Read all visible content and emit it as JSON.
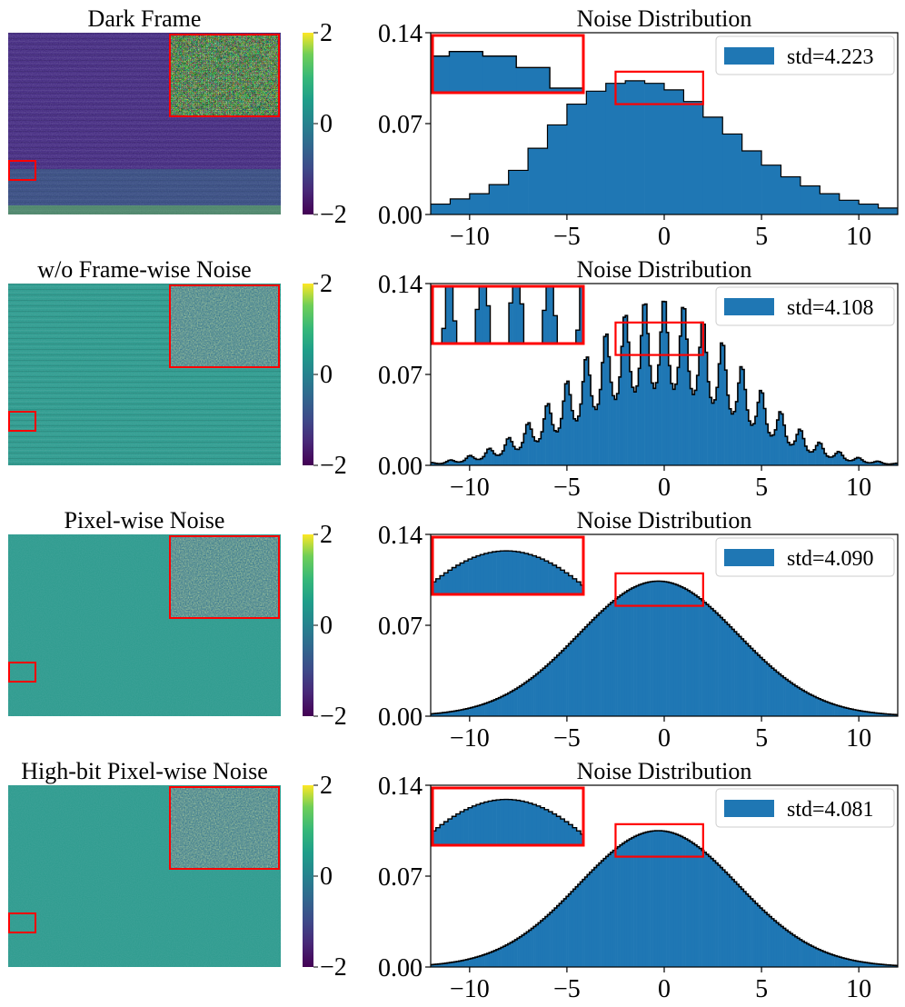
{
  "colors": {
    "bar": "#1f77b4",
    "bar_edge": "#000000",
    "box": "#ff0000",
    "noise_dark": "#3b1e78",
    "noise_teal": "#2a9a8c",
    "cmap_top": "#f2e51d",
    "cmap_mid": "#25838e",
    "cmap_bottom": "#440154"
  },
  "chart_data": [
    {
      "type": "heatmap",
      "panel": "dark-frame",
      "title": "Dark Frame",
      "colorbar_ticks": [
        "2",
        "0",
        "−2"
      ],
      "colorbar_range": [
        -2,
        2
      ],
      "pattern": "banded-dark"
    },
    {
      "type": "bar",
      "panel": "dark-frame-hist",
      "title": "Noise Distribution",
      "legend": "std=4.223",
      "xlim": [
        -12,
        12
      ],
      "ylim": [
        0,
        0.14
      ],
      "x_ticks": [
        "−10",
        "−5",
        "0",
        "5",
        "10"
      ],
      "x_tick_values": [
        -10,
        -5,
        0,
        5,
        10
      ],
      "y_ticks": [
        "0.00",
        "0.07",
        "0.14"
      ],
      "y_tick_values": [
        0,
        0.07,
        0.14
      ],
      "bin_edges": [
        -12,
        -11,
        -10,
        -9,
        -8,
        -7,
        -6,
        -5,
        -4,
        -3,
        -2,
        -1,
        0,
        1,
        2,
        3,
        4,
        5,
        6,
        7,
        8,
        9,
        10,
        11,
        12
      ],
      "values": [
        0.008,
        0.012,
        0.016,
        0.023,
        0.034,
        0.051,
        0.069,
        0.085,
        0.095,
        0.101,
        0.103,
        0.101,
        0.096,
        0.087,
        0.075,
        0.062,
        0.049,
        0.038,
        0.029,
        0.022,
        0.016,
        0.011,
        0.008,
        0.005
      ],
      "zoom_x": [
        -2.5,
        2
      ],
      "zoom_y": [
        0.085,
        0.11
      ]
    },
    {
      "type": "heatmap",
      "panel": "wo-frame-wise",
      "title": "w/o Frame-wise Noise",
      "colorbar_ticks": [
        "2",
        "0",
        "−2"
      ],
      "colorbar_range": [
        -2,
        2
      ],
      "pattern": "teal-striped"
    },
    {
      "type": "bar",
      "panel": "wo-frame-wise-hist",
      "title": "Noise Distribution",
      "legend": "std=4.108",
      "xlim": [
        -12,
        12
      ],
      "ylim": [
        0,
        0.14
      ],
      "x_ticks": [
        "−10",
        "−5",
        "0",
        "5",
        "10"
      ],
      "x_tick_values": [
        -10,
        -5,
        0,
        5,
        10
      ],
      "y_ticks": [
        "0.00",
        "0.07",
        "0.14"
      ],
      "y_tick_values": [
        0,
        0.07,
        0.14
      ],
      "distribution": "gaussian-comb",
      "mean": -0.2,
      "std": 4.108,
      "peak_density": 0.13,
      "bins": 216,
      "comb_period": 1,
      "zoom_x": [
        -2.5,
        2
      ],
      "zoom_y": [
        0.085,
        0.11
      ]
    },
    {
      "type": "heatmap",
      "panel": "pixel-wise",
      "title": "Pixel-wise Noise",
      "colorbar_ticks": [
        "2",
        "0",
        "−2"
      ],
      "colorbar_range": [
        -2,
        2
      ],
      "pattern": "teal-uniform"
    },
    {
      "type": "bar",
      "panel": "pixel-wise-hist",
      "title": "Noise Distribution",
      "legend": "std=4.090",
      "xlim": [
        -12,
        12
      ],
      "ylim": [
        0,
        0.14
      ],
      "x_ticks": [
        "−10",
        "−5",
        "0",
        "5",
        "10"
      ],
      "x_tick_values": [
        -10,
        -5,
        0,
        5,
        10
      ],
      "y_ticks": [
        "0.00",
        "0.07",
        "0.14"
      ],
      "y_tick_values": [
        0,
        0.07,
        0.14
      ],
      "distribution": "gaussian",
      "mean": -0.3,
      "std": 4.09,
      "peak_density": 0.104,
      "bins": 200,
      "zoom_x": [
        -2.5,
        2
      ],
      "zoom_y": [
        0.085,
        0.11
      ]
    },
    {
      "type": "heatmap",
      "panel": "high-bit-pixel-wise",
      "title": "High-bit Pixel-wise Noise",
      "colorbar_ticks": [
        "2",
        "0",
        "−2"
      ],
      "colorbar_range": [
        -2,
        2
      ],
      "pattern": "teal-uniform"
    },
    {
      "type": "bar",
      "panel": "high-bit-pixel-wise-hist",
      "title": "Noise Distribution",
      "legend": "std=4.081",
      "xlim": [
        -12,
        12
      ],
      "ylim": [
        0,
        0.14
      ],
      "x_ticks": [
        "−10",
        "−5",
        "0",
        "5",
        "10"
      ],
      "x_tick_values": [
        -10,
        -5,
        0,
        5,
        10
      ],
      "y_ticks": [
        "0.00",
        "0.07",
        "0.14"
      ],
      "y_tick_values": [
        0,
        0.07,
        0.14
      ],
      "distribution": "gaussian",
      "mean": -0.3,
      "std": 4.081,
      "peak_density": 0.105,
      "bins": 200,
      "zoom_x": [
        -2.5,
        2
      ],
      "zoom_y": [
        0.085,
        0.11
      ]
    }
  ]
}
